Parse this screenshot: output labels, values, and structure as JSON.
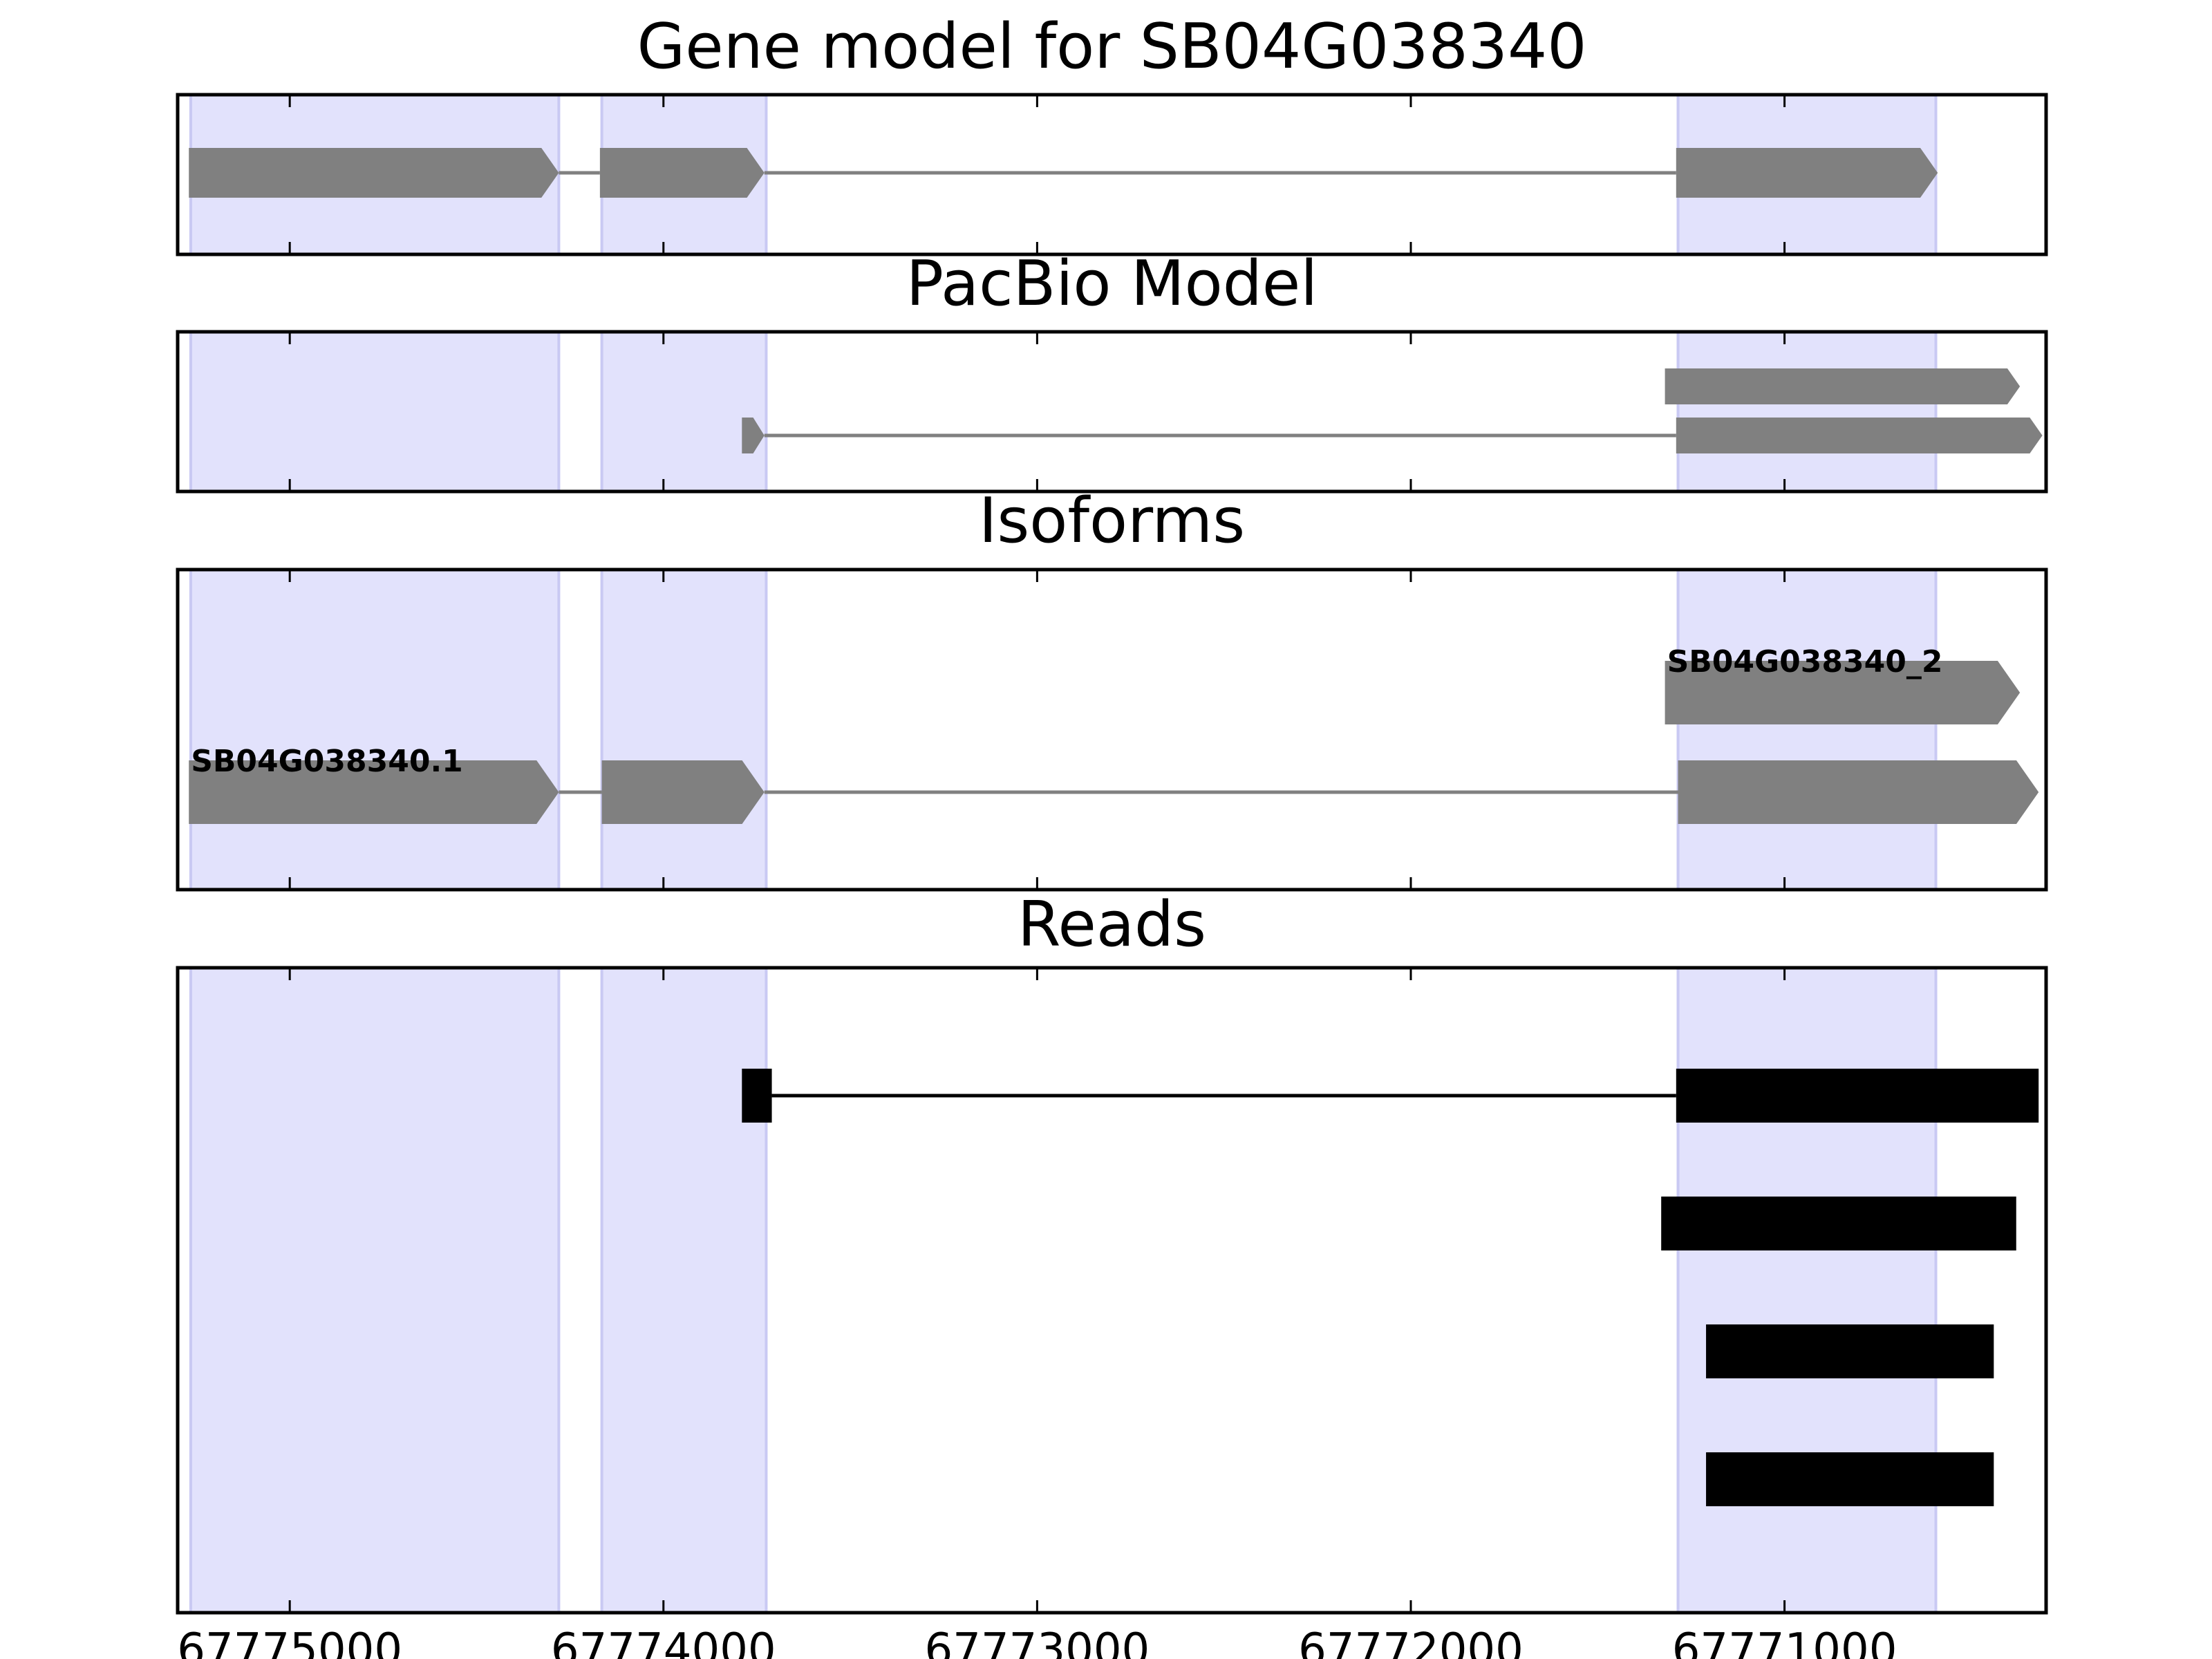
{
  "chart_data": {
    "type": "gene-track",
    "x_axis": {
      "domain": [
        67775300,
        67770300
      ],
      "reversed": true,
      "ticks": [
        67775000,
        67774000,
        67773000,
        67772000,
        67771000
      ],
      "tick_labels": [
        "67775000",
        "67774000",
        "67773000",
        "67772000",
        "67771000"
      ]
    },
    "highlight_regions": [
      [
        67775265,
        67774280
      ],
      [
        67774165,
        67773725
      ],
      [
        67771285,
        67770595
      ]
    ],
    "colors": {
      "highlight": "#e2e2fc",
      "highlight_edge": "#c9c9f3",
      "feature": "#808080",
      "read": "#000000",
      "intron": "#808080"
    },
    "panels": [
      {
        "id": "gene-model",
        "title": "Gene model for SB04G038340",
        "tracks": [
          {
            "exons": [
              [
                67775270,
                67774280
              ],
              [
                67774170,
                67773730
              ],
              [
                67771290,
                67770590
              ]
            ],
            "label": ""
          }
        ]
      },
      {
        "id": "pacbio-model",
        "title": "PacBio Model",
        "tracks": [
          {
            "exons": [
              [
                67771320,
                67770370
              ]
            ],
            "label": ""
          },
          {
            "exons": [
              [
                67773790,
                67773730
              ],
              [
                67771290,
                67770310
              ]
            ],
            "label": ""
          }
        ]
      },
      {
        "id": "isoforms",
        "title": "Isoforms",
        "tracks": [
          {
            "exons": [
              [
                67771320,
                67770370
              ]
            ],
            "label": "SB04G038340_2"
          },
          {
            "exons": [
              [
                67775270,
                67774280
              ],
              [
                67774165,
                67773730
              ],
              [
                67771285,
                67770320
              ]
            ],
            "label": "SB04G038340.1"
          }
        ]
      },
      {
        "id": "reads",
        "title": "Reads",
        "tracks": [
          {
            "exons": [
              [
                67773790,
                67773710
              ],
              [
                67771290,
                67770320
              ]
            ]
          },
          {
            "exons": [
              [
                67771330,
                67770380
              ]
            ]
          },
          {
            "exons": [
              [
                67771210,
                67770440
              ]
            ]
          },
          {
            "exons": [
              [
                67771210,
                67770440
              ]
            ]
          }
        ]
      }
    ]
  }
}
